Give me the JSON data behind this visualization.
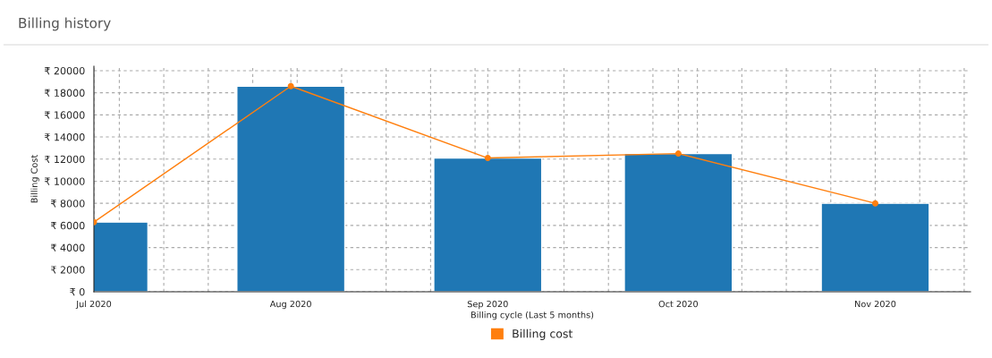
{
  "chart_data": {
    "type": "bar",
    "title": "Billing history",
    "xlabel": "Billing cycle (Last 5 months)",
    "ylabel": "Billing Cost",
    "x": [
      "2020-07-01",
      "2020-08-01",
      "2020-09-01",
      "2020-10-01",
      "2020-11-01"
    ],
    "series": [
      {
        "color": "#1f77b4",
        "values": [
          6300,
          18600,
          12100,
          12500,
          8000
        ]
      },
      {
        "type": "line",
        "name": "Billing cost",
        "color": "#ff7f0e",
        "marker": "circle",
        "values": [
          6300,
          18600,
          12100,
          12500,
          8000
        ]
      }
    ],
    "xlim": [
      "2020-07-01",
      "2020-11-16"
    ],
    "xticks": [
      {
        "value": "2020-07-01",
        "label": "Jul 2020"
      },
      {
        "value": "2020-07-05",
        "label": null
      },
      {
        "value": "2020-07-12",
        "label": null
      },
      {
        "value": "2020-07-19",
        "label": null
      },
      {
        "value": "2020-07-26",
        "label": null
      },
      {
        "value": "2020-08-01",
        "label": "Aug 2020"
      },
      {
        "value": "2020-08-02",
        "label": null
      },
      {
        "value": "2020-08-09",
        "label": null
      },
      {
        "value": "2020-08-16",
        "label": null
      },
      {
        "value": "2020-08-23",
        "label": null
      },
      {
        "value": "2020-08-30",
        "label": null
      },
      {
        "value": "2020-09-01",
        "label": "Sep 2020"
      },
      {
        "value": "2020-09-06",
        "label": null
      },
      {
        "value": "2020-09-13",
        "label": null
      },
      {
        "value": "2020-09-20",
        "label": null
      },
      {
        "value": "2020-09-27",
        "label": null
      },
      {
        "value": "2020-10-01",
        "label": "Oct 2020"
      },
      {
        "value": "2020-10-04",
        "label": null
      },
      {
        "value": "2020-10-11",
        "label": null
      },
      {
        "value": "2020-10-18",
        "label": null
      },
      {
        "value": "2020-10-25",
        "label": null
      },
      {
        "value": "2020-11-01",
        "label": "Nov 2020"
      },
      {
        "value": "2020-11-08",
        "label": null
      },
      {
        "value": "2020-11-15",
        "label": null
      }
    ],
    "ylim": [
      0,
      20400
    ],
    "yticks": [
      {
        "value": 0,
        "label": "₹ 0"
      },
      {
        "value": 2000,
        "label": "₹ 2000"
      },
      {
        "value": 4000,
        "label": "₹ 4000"
      },
      {
        "value": 6000,
        "label": "₹ 6000"
      },
      {
        "value": 8000,
        "label": "₹ 8000"
      },
      {
        "value": 10000,
        "label": "₹ 10000"
      },
      {
        "value": 12000,
        "label": "₹ 12000"
      },
      {
        "value": 14000,
        "label": "₹ 14000"
      },
      {
        "value": 16000,
        "label": "₹ 16000"
      },
      {
        "value": 18000,
        "label": "₹ 18000"
      },
      {
        "value": 20000,
        "label": "₹ 20000"
      }
    ],
    "grid": true,
    "legend": "bottom"
  }
}
